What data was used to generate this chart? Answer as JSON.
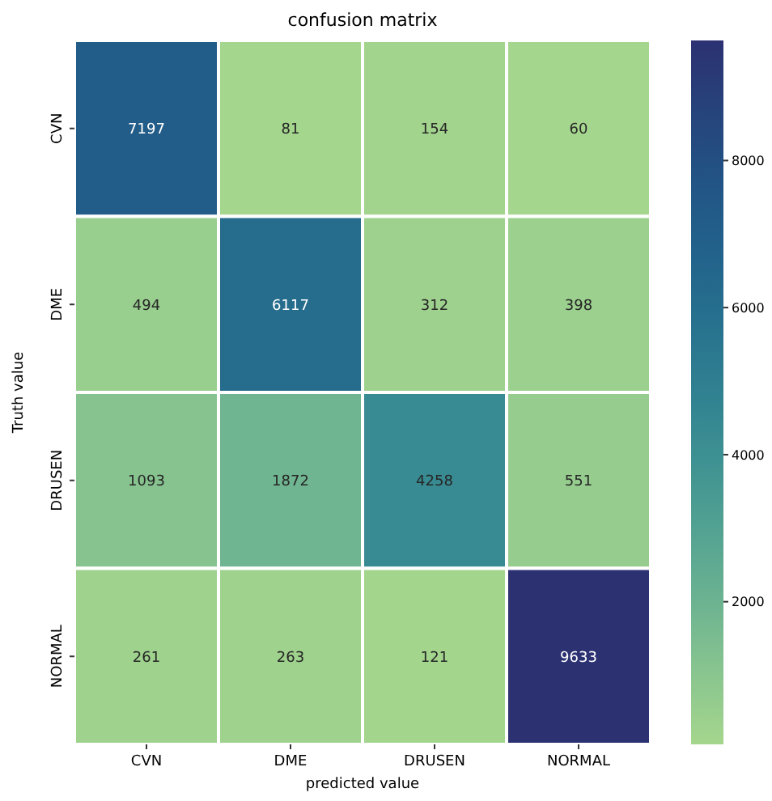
{
  "chart_data": {
    "type": "heatmap",
    "title": "confusion matrix",
    "xlabel": "predicted value",
    "ylabel": "Truth value",
    "categories": [
      "CVN",
      "DME",
      "DRUSEN",
      "NORMAL"
    ],
    "y_categories": [
      "CVN",
      "DME",
      "DRUSEN",
      "NORMAL"
    ],
    "cells": [
      [
        7197,
        81,
        154,
        60
      ],
      [
        494,
        6117,
        312,
        398
      ],
      [
        1093,
        1872,
        4258,
        551
      ],
      [
        261,
        263,
        121,
        9633
      ]
    ],
    "clim": [
      60,
      9633
    ],
    "cticks": [
      2000,
      4000,
      6000,
      8000
    ],
    "data_labels": true
  }
}
